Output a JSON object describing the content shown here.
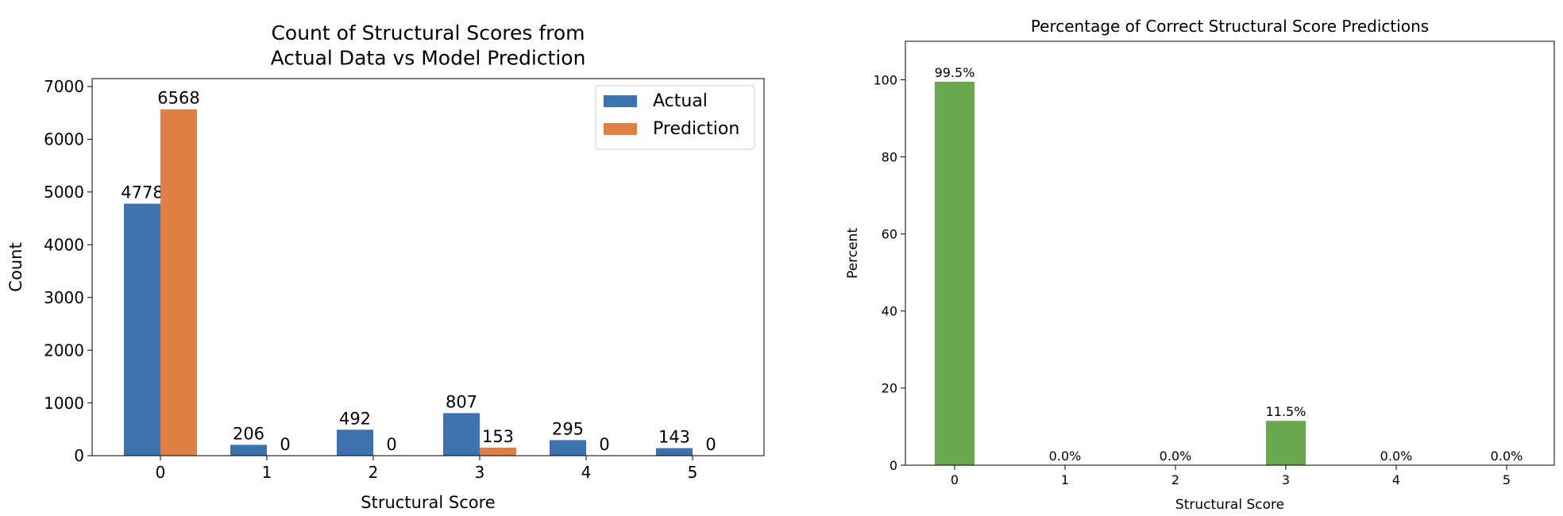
{
  "chart_data": [
    {
      "type": "bar",
      "title": "Count of Structural Scores from\nActual Data vs Model Prediction",
      "xlabel": "Structural Score",
      "ylabel": "Count",
      "categories": [
        "0",
        "1",
        "2",
        "3",
        "4",
        "5"
      ],
      "ylim": [
        0,
        7150
      ],
      "yticks": [
        0,
        1000,
        2000,
        3000,
        4000,
        5000,
        6000,
        7000
      ],
      "grid": false,
      "legend": "top-right",
      "series": [
        {
          "name": "Actual",
          "color": "#3c72b0",
          "values": [
            4778,
            206,
            492,
            807,
            295,
            143
          ]
        },
        {
          "name": "Prediction",
          "color": "#e07f44",
          "values": [
            6568,
            0,
            0,
            153,
            0,
            0
          ]
        }
      ]
    },
    {
      "type": "bar",
      "title": "Percentage of Correct Structural Score Predictions",
      "xlabel": "Structural Score",
      "ylabel": "Percent",
      "categories": [
        "0",
        "1",
        "2",
        "3",
        "4",
        "5"
      ],
      "ylim": [
        0,
        110
      ],
      "yticks": [
        0,
        20,
        40,
        60,
        80,
        100
      ],
      "grid": false,
      "series": [
        {
          "color": "#6aa84f",
          "values": [
            99.5,
            0.0,
            0.0,
            11.5,
            0.0,
            0.0
          ],
          "labels": [
            "99.5%",
            "0.0%",
            "0.0%",
            "11.5%",
            "0.0%",
            "0.0%"
          ]
        }
      ]
    }
  ]
}
